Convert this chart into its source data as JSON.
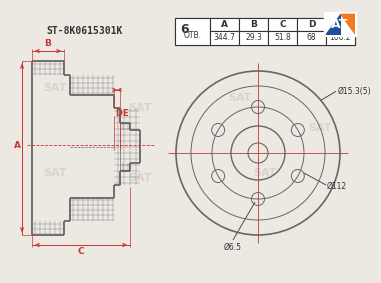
{
  "bg_color": "#ece9e3",
  "line_color": "#666666",
  "red_color": "#cc3333",
  "dark_color": "#333333",
  "part_number": "ST-8K0615301K",
  "holes_label": "OTB.",
  "table_headers": [
    "A",
    "B",
    "C",
    "D",
    "E"
  ],
  "table_values": [
    "344.7",
    "29.3",
    "51.8",
    "68",
    "166.2"
  ],
  "dim_d15": "Ø15.3(5)",
  "dim_d112": "Ø112",
  "dim_d65": "Ø6.5",
  "logo_orange": "#f47920",
  "logo_blue": "#1e4d9b",
  "wm_color": "#c8c0b5",
  "white": "#ffffff"
}
